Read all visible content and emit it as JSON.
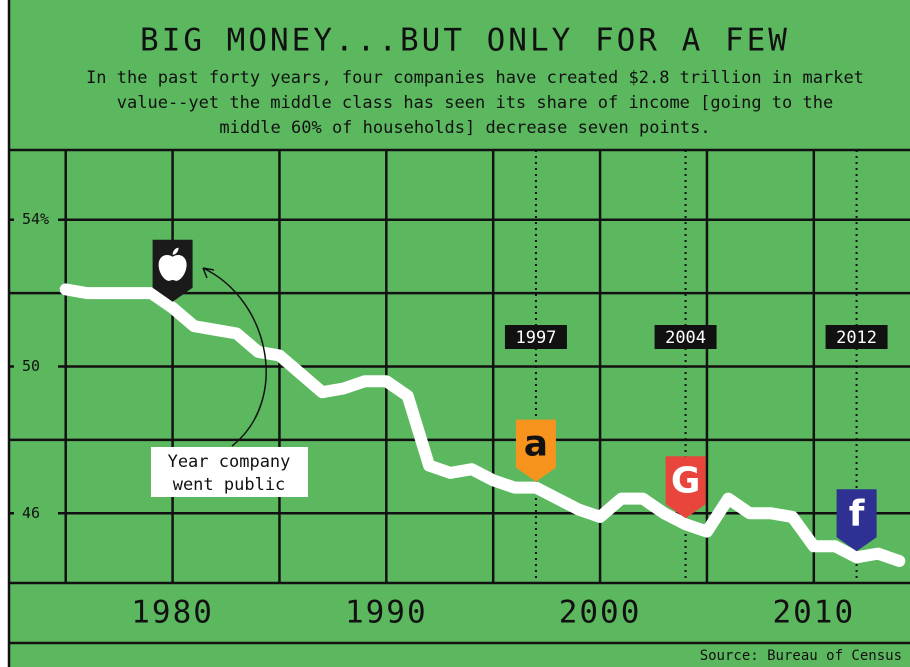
{
  "chart_data": {
    "type": "line",
    "title": "BIG MONEY...BUT ONLY FOR A FEW",
    "subtitle": [
      "In the past forty years, four companies have created $2.8 trillion in market",
      "value--yet the middle class has seen its share of income [going to the",
      "middle 60% of households] decrease seven points."
    ],
    "source": "Source: Bureau of Census",
    "annotation": [
      "Year company",
      "went public"
    ],
    "x": [
      1975,
      1976,
      1977,
      1978,
      1979,
      1980,
      1981,
      1982,
      1983,
      1984,
      1985,
      1986,
      1987,
      1988,
      1989,
      1990,
      1991,
      1992,
      1993,
      1994,
      1995,
      1996,
      1997,
      1998,
      1999,
      2000,
      2001,
      2002,
      2003,
      2004,
      2005,
      2006,
      2007,
      2008,
      2009,
      2010,
      2011,
      2012,
      2013,
      2014
    ],
    "values": [
      52.1,
      52.0,
      52.0,
      52.0,
      52.0,
      51.6,
      51.1,
      51.0,
      50.9,
      50.4,
      50.3,
      49.8,
      49.3,
      49.4,
      49.6,
      49.6,
      49.2,
      47.3,
      47.1,
      47.2,
      46.9,
      46.7,
      46.7,
      46.4,
      46.1,
      45.9,
      46.4,
      46.4,
      46.0,
      45.7,
      45.5,
      46.4,
      46.0,
      46.0,
      45.9,
      45.1,
      45.1,
      44.8,
      44.9,
      44.7
    ],
    "color": "#ffffff",
    "background": "#5cb85f",
    "xlim": [
      1972.3,
      2014.5
    ],
    "xticks": [
      1980,
      1990,
      2000,
      2010
    ],
    "xgrid": [
      1975,
      1980,
      1985,
      1990,
      1995,
      2000,
      2005,
      2010
    ],
    "ylim": [
      44.1,
      55.9
    ],
    "yticks": [
      {
        "value": 54,
        "label": "54%"
      },
      50,
      46
    ],
    "ygrid": [
      54,
      52,
      50,
      48,
      46
    ],
    "grid": true,
    "first_public": {
      "year": 1980,
      "color": "#1a1a1a"
    },
    "events": [
      {
        "year": 1997,
        "icon": "a",
        "color": "#f7941d"
      },
      {
        "year": 2004,
        "icon": "G",
        "color": "#e8453c"
      },
      {
        "year": 2012,
        "icon": "f",
        "color": "#2e3192"
      }
    ]
  }
}
